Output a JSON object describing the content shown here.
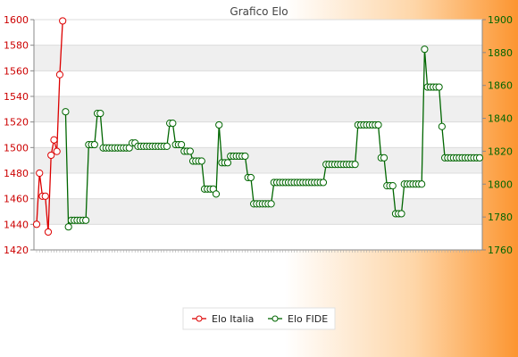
{
  "chart_data": {
    "type": "line",
    "title": "Grafico Elo",
    "xlabel": "",
    "ylabel": "",
    "y_left": {
      "ylim": [
        1420,
        1600
      ],
      "ticks": [
        1420,
        1440,
        1460,
        1480,
        1500,
        1520,
        1540,
        1560,
        1580,
        1600
      ],
      "color": "#cc0000"
    },
    "y_right": {
      "ylim": [
        1760,
        1900
      ],
      "ticks": [
        1760,
        1780,
        1800,
        1820,
        1840,
        1860,
        1880,
        1900
      ],
      "color": "#006600"
    },
    "legend": {
      "placement": "bottom-center"
    },
    "grid": true,
    "series": [
      {
        "name": "Elo Italia",
        "axis": "left",
        "color": "#dd0000",
        "x": [
          0,
          1,
          2,
          3,
          4,
          5,
          6,
          7,
          8,
          9
        ],
        "values": [
          1440,
          1480,
          1462,
          1462,
          1434,
          1494,
          1506,
          1497,
          1557,
          1599
        ]
      },
      {
        "name": "Elo FIDE",
        "axis": "right",
        "color": "#006600",
        "x_start": 10,
        "values": [
          1844,
          1774,
          1778,
          1778,
          1778,
          1778,
          1778,
          1778,
          1824,
          1824,
          1824,
          1843,
          1843,
          1822,
          1822,
          1822,
          1822,
          1822,
          1822,
          1822,
          1822,
          1822,
          1822,
          1825,
          1825,
          1823,
          1823,
          1823,
          1823,
          1823,
          1823,
          1823,
          1823,
          1823,
          1823,
          1823,
          1837,
          1837,
          1824,
          1824,
          1824,
          1820,
          1820,
          1820,
          1814,
          1814,
          1814,
          1814,
          1797,
          1797,
          1797,
          1797,
          1794,
          1836,
          1813,
          1813,
          1813,
          1817,
          1817,
          1817,
          1817,
          1817,
          1817,
          1804,
          1804,
          1788,
          1788,
          1788,
          1788,
          1788,
          1788,
          1788,
          1801,
          1801,
          1801,
          1801,
          1801,
          1801,
          1801,
          1801,
          1801,
          1801,
          1801,
          1801,
          1801,
          1801,
          1801,
          1801,
          1801,
          1801,
          1812,
          1812,
          1812,
          1812,
          1812,
          1812,
          1812,
          1812,
          1812,
          1812,
          1812,
          1836,
          1836,
          1836,
          1836,
          1836,
          1836,
          1836,
          1836,
          1816,
          1816,
          1799,
          1799,
          1799,
          1782,
          1782,
          1782,
          1800,
          1800,
          1800,
          1800,
          1800,
          1800,
          1800,
          1882,
          1859,
          1859,
          1859,
          1859,
          1859,
          1835,
          1816,
          1816,
          1816,
          1816,
          1816,
          1816,
          1816,
          1816,
          1816,
          1816,
          1816,
          1816,
          1816
        ]
      }
    ]
  }
}
